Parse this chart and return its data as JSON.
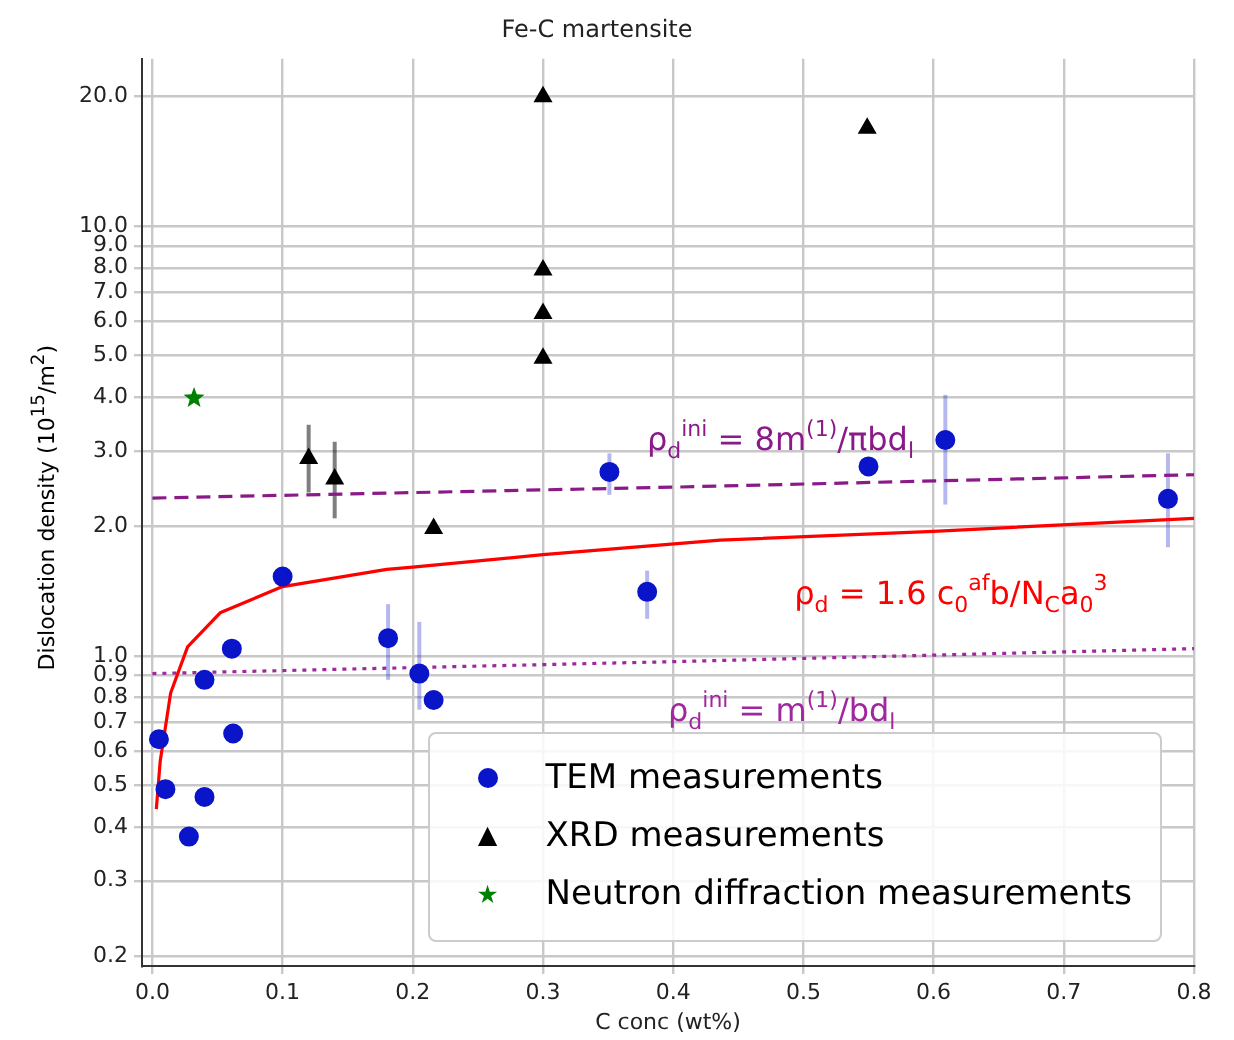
{
  "chart_data": {
    "type": "scatter",
    "title": "Fe-C martensite",
    "xlabel": "C conc (wt%)",
    "ylabel": "Dislocation density (10$^{15}$/m$^{2}$)",
    "log": "y",
    "grid": true,
    "legend": "bottom right",
    "xlim": [
      -0.008,
      0.8
    ],
    "xticks": [
      {
        "value": 0,
        "label": "0.0"
      },
      0.1,
      0.2,
      0.3,
      0.4,
      0.5,
      0.6,
      0.7,
      0.8
    ],
    "ylim": [
      0.19,
      24.5
    ],
    "yticks": [
      0.2,
      0.3,
      0.4,
      0.5,
      0.6,
      0.7,
      0.8,
      0.9,
      {
        "value": 1,
        "label": "1.0"
      },
      {
        "value": 2,
        "label": "2.0"
      },
      {
        "value": 3,
        "label": "3.0"
      },
      {
        "value": 4,
        "label": "4.0"
      },
      {
        "value": 5,
        "label": "5.0"
      },
      {
        "value": 6,
        "label": "6.0"
      },
      {
        "value": 7,
        "label": "7.0"
      },
      {
        "value": 8,
        "label": "8.0"
      },
      {
        "value": 9,
        "label": "9.0"
      },
      {
        "value": 10,
        "label": "10.0"
      },
      {
        "value": 20,
        "label": "20.0"
      }
    ],
    "series": [
      {
        "name": "TEM measurements",
        "type": "scatter",
        "marker": "circle",
        "color": "#0a14c8",
        "x": [
          0.005,
          0.01,
          0.028,
          0.04,
          0.04,
          0.061,
          0.062,
          0.1,
          0.181,
          0.205,
          0.216,
          0.351,
          0.38,
          0.55,
          0.609,
          0.78
        ],
        "values": [
          0.64,
          0.49,
          0.38,
          0.47,
          0.88,
          1.04,
          0.66,
          1.53,
          1.1,
          0.91,
          0.79,
          2.68,
          1.41,
          2.76,
          3.18,
          2.32
        ],
        "errors": [
          null,
          null,
          null,
          null,
          null,
          null,
          null,
          null,
          [
            0.88,
            1.32
          ],
          [
            0.75,
            1.2
          ],
          null,
          [
            2.37,
            2.96
          ],
          [
            1.22,
            1.58
          ],
          null,
          [
            2.25,
            4.05
          ],
          [
            1.79,
            2.96
          ]
        ]
      },
      {
        "name": "XRD measurements",
        "type": "scatter",
        "marker": "triangle",
        "color": "#000000",
        "x": [
          0.12,
          0.14,
          0.216,
          0.3,
          0.3,
          0.3,
          0.3,
          0.549
        ],
        "values": [
          2.88,
          2.58,
          1.98,
          20,
          7.9,
          6.26,
          4.93,
          16.9
        ],
        "errors": [
          [
            2.4,
            3.45
          ],
          [
            2.09,
            3.15
          ],
          null,
          null,
          null,
          null,
          null,
          null
        ]
      },
      {
        "name": "Neutron diffraction measurements",
        "type": "scatter",
        "marker": "star",
        "color": "#008000",
        "x": [
          0.032
        ],
        "values": [
          3.98
        ]
      },
      {
        "type": "line",
        "marker": "none",
        "line_style": "dashed",
        "color": "#8b1a89",
        "x": [
          0,
          0.4,
          0.8
        ],
        "values": [
          2.33,
          2.47,
          2.64
        ]
      },
      {
        "type": "line",
        "marker": "none",
        "line_style": "solid",
        "color": "#ff0000",
        "x": [
          0.003,
          0.006,
          0.014,
          0.027,
          0.052,
          0.1,
          0.18,
          0.2,
          0.3,
          0.436,
          0.6,
          0.8
        ],
        "values": [
          0.44,
          0.57,
          0.82,
          1.05,
          1.26,
          1.45,
          1.59,
          1.61,
          1.72,
          1.86,
          1.95,
          2.09
        ]
      },
      {
        "type": "line",
        "marker": "none",
        "line_style": "dotted",
        "color": "#a0279e",
        "x": [
          0,
          0.4,
          0.8
        ],
        "values": [
          0.91,
          0.97,
          1.04
        ]
      }
    ],
    "annotations": [
      "ρ$_{d}$$^{ini}$ = 8m$^{(1)}$/πbd$_{l}$",
      "ρ$_{d}$ = 1.6 c$_{0}$$^{af}$b/N$_{C}$a$_{0}$$^{3}$",
      "ρ$_{d}$$^{ini}$ = m$^{(1)}$/bd$_{l}$"
    ]
  }
}
